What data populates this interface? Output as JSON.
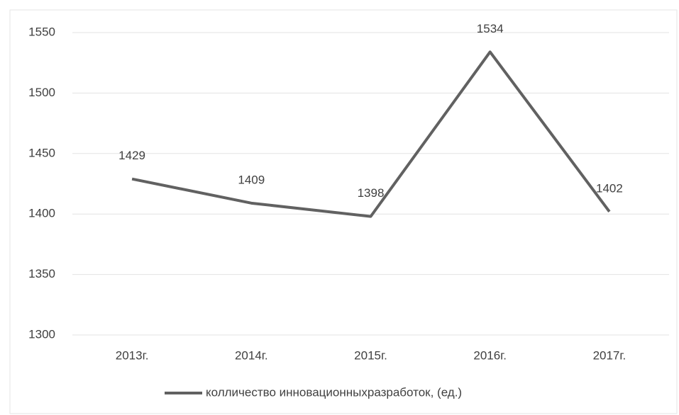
{
  "chart_data": {
    "type": "line",
    "categories": [
      "2013г.",
      "2014г.",
      "2015г.",
      "2016г.",
      "2017г."
    ],
    "series": [
      {
        "name": "колличество инновационныхразработок, (ед.)",
        "color": "#616161",
        "values": [
          1429,
          1409,
          1398,
          1534,
          1402
        ]
      }
    ],
    "ylim": [
      1300,
      1550
    ],
    "yticks": [
      1300,
      1350,
      1400,
      1450,
      1500,
      1550
    ],
    "grid": true,
    "legend": "bottom"
  }
}
